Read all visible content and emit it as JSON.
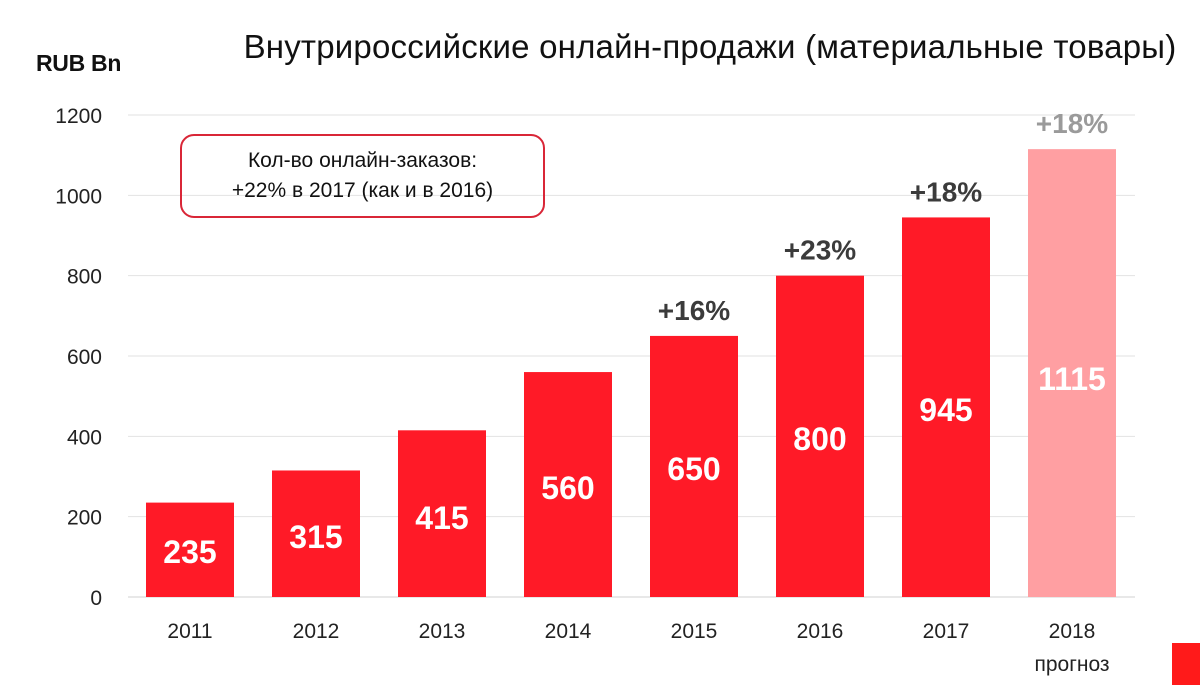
{
  "header": {
    "unit_label": "RUB Bn",
    "title": "Внутрироссийские онлайн-продажи (материальные товары)"
  },
  "callout": {
    "line1": "Кол-во онлайн-заказов:",
    "line2": "+22% в 2017 (как и в 2016)"
  },
  "chart_data": {
    "type": "bar",
    "title": "Внутрироссийские онлайн-продажи (материальные товары)",
    "ylabel": "RUB Bn",
    "xlabel": "",
    "ylim": [
      0,
      1200
    ],
    "yticks": [
      0,
      200,
      400,
      600,
      800,
      1000,
      1200
    ],
    "grid": true,
    "categories": [
      "2011",
      "2012",
      "2013",
      "2014",
      "2015",
      "2016",
      "2017",
      "2018"
    ],
    "category_sublabels": [
      "",
      "",
      "",
      "",
      "",
      "",
      "",
      "прогноз"
    ],
    "values": [
      235,
      315,
      415,
      560,
      650,
      800,
      945,
      1115
    ],
    "value_labels": [
      "235",
      "315",
      "415",
      "560",
      "650",
      "800",
      "945",
      "1115"
    ],
    "growth_labels": [
      "",
      "",
      "",
      "",
      "+16%",
      "+23%",
      "+18%",
      "+18%"
    ],
    "forecast": [
      false,
      false,
      false,
      false,
      false,
      false,
      false,
      true
    ],
    "colors": {
      "bar": "#ff1a27",
      "forecast_bar": "#ff9fa2",
      "bar_label": "#ffffff",
      "growth_label": "#3b3b3b",
      "forecast_growth_label": "#9a9a9a",
      "grid": "#e2e2e2",
      "tick_label": "#222222"
    }
  }
}
